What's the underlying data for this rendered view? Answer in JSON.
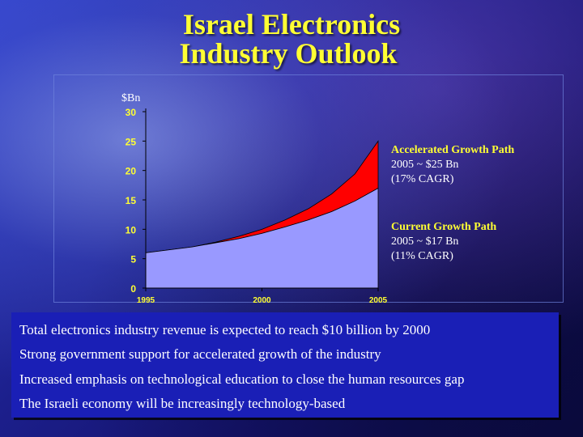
{
  "slide": {
    "title_line1": "Israel Electronics",
    "title_line2": "Industry Outlook"
  },
  "annotations": {
    "accelerated": {
      "head": "Accelerated Growth Path",
      "line2": "2005 ~ $25 Bn",
      "line3": "(17% CAGR)"
    },
    "current": {
      "head": "Current Growth Path",
      "line2": "2005 ~ $17 Bn",
      "line3": "(11% CAGR)"
    }
  },
  "bullets": [
    "Total electronics industry revenue is expected to reach $10 billion by 2000",
    "Strong government support for accelerated growth of the industry",
    "Increased emphasis on technological education to close the human resources gap",
    "The Israeli economy will be increasingly technology-based"
  ],
  "chart_data": {
    "type": "area",
    "unit_label": "$Bn",
    "title": "",
    "xlabel": "",
    "ylabel": "",
    "xlim": [
      1995,
      2005
    ],
    "ylim": [
      0,
      30
    ],
    "x_ticks": [
      "1995",
      "2000",
      "2005"
    ],
    "y_ticks": [
      "0",
      "5",
      "10",
      "15",
      "20",
      "25",
      "30"
    ],
    "grid": false,
    "x": [
      1995,
      1996,
      1997,
      1998,
      1999,
      2000,
      2001,
      2002,
      2003,
      2004,
      2005
    ],
    "series": [
      {
        "values": [
          6,
          6.5,
          7,
          7.7,
          8.4,
          9.3,
          10.4,
          11.6,
          13,
          14.8,
          17
        ],
        "color": "#9999ff"
      },
      {
        "values": [
          6,
          6.5,
          7,
          7.8,
          8.8,
          10,
          11.6,
          13.5,
          16,
          19.4,
          25
        ],
        "color": "#ff0000"
      }
    ]
  },
  "colors": {
    "title": "#ffff33",
    "tick_labels": "#ffff33",
    "annotation_head": "#ffff33",
    "bullet_box": "#1a1fb6",
    "current_area": "#9999ff",
    "accelerated_area": "#ff0000"
  }
}
